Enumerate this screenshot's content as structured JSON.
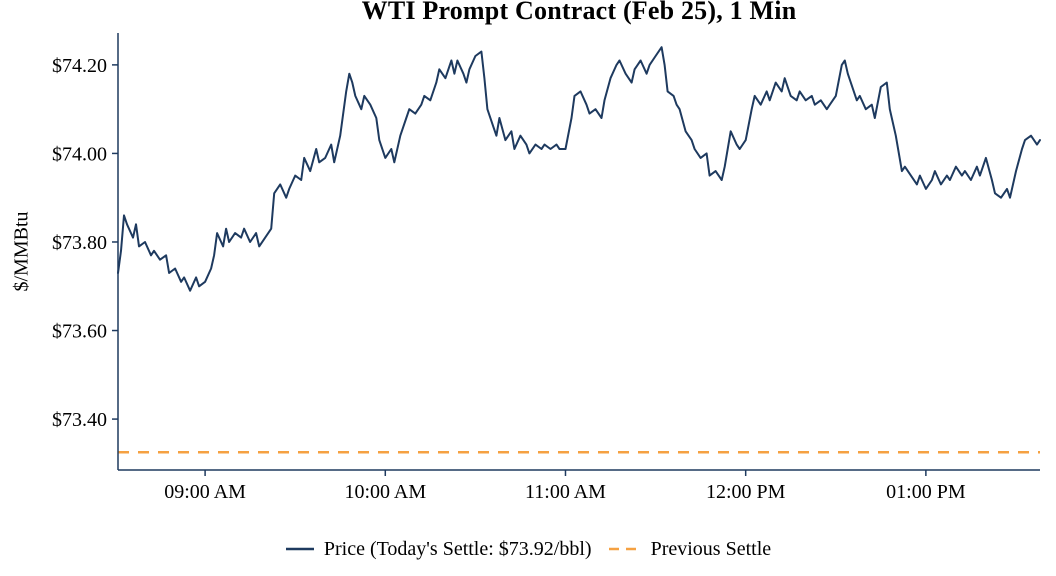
{
  "chart_data": {
    "type": "line",
    "title": "WTI Prompt Contract (Feb 25), 1 Min",
    "xlabel": "",
    "ylabel": "$/MMBtu",
    "grid": false,
    "background": "#ffffff",
    "legend_position": "bottom",
    "x_unit": "minutes_after_midnight",
    "x_range": [
      511,
      818
    ],
    "y_range": [
      73.285,
      74.272
    ],
    "x_ticks": [
      {
        "value": 540,
        "label": "09:00 AM"
      },
      {
        "value": 600,
        "label": "10:00 AM"
      },
      {
        "value": 660,
        "label": "11:00 AM"
      },
      {
        "value": 720,
        "label": "12:00 PM"
      },
      {
        "value": 780,
        "label": "01:00 PM"
      }
    ],
    "y_ticks": [
      {
        "value": 74.2,
        "label": "$74.20"
      },
      {
        "value": 74.0,
        "label": "$74.00"
      },
      {
        "value": 73.8,
        "label": "$73.80"
      },
      {
        "value": 73.6,
        "label": "$73.60"
      },
      {
        "value": 73.4,
        "label": "$73.40"
      }
    ],
    "previous_settle": 73.325,
    "todays_settle_text": "$73.92/bbl",
    "series": [
      {
        "name": "Price (Today's Settle: $73.92/bbl)",
        "style": "solid",
        "points": [
          [
            511,
            73.73
          ],
          [
            512,
            73.78
          ],
          [
            513,
            73.86
          ],
          [
            514,
            73.84
          ],
          [
            516,
            73.81
          ],
          [
            517,
            73.84
          ],
          [
            518,
            73.79
          ],
          [
            520,
            73.8
          ],
          [
            522,
            73.77
          ],
          [
            523,
            73.78
          ],
          [
            525,
            73.76
          ],
          [
            527,
            73.77
          ],
          [
            528,
            73.73
          ],
          [
            530,
            73.74
          ],
          [
            532,
            73.71
          ],
          [
            533,
            73.72
          ],
          [
            535,
            73.69
          ],
          [
            537,
            73.72
          ],
          [
            538,
            73.7
          ],
          [
            540,
            73.71
          ],
          [
            542,
            73.74
          ],
          [
            543,
            73.77
          ],
          [
            544,
            73.82
          ],
          [
            546,
            73.79
          ],
          [
            547,
            73.83
          ],
          [
            548,
            73.8
          ],
          [
            550,
            73.82
          ],
          [
            552,
            73.81
          ],
          [
            553,
            73.83
          ],
          [
            555,
            73.8
          ],
          [
            557,
            73.82
          ],
          [
            558,
            73.79
          ],
          [
            560,
            73.81
          ],
          [
            562,
            73.83
          ],
          [
            563,
            73.91
          ],
          [
            565,
            73.93
          ],
          [
            567,
            73.9
          ],
          [
            568,
            73.92
          ],
          [
            570,
            73.95
          ],
          [
            572,
            73.94
          ],
          [
            573,
            73.99
          ],
          [
            575,
            73.96
          ],
          [
            577,
            74.01
          ],
          [
            578,
            73.98
          ],
          [
            580,
            73.99
          ],
          [
            582,
            74.02
          ],
          [
            583,
            73.98
          ],
          [
            585,
            74.04
          ],
          [
            587,
            74.14
          ],
          [
            588,
            74.18
          ],
          [
            589,
            74.16
          ],
          [
            590,
            74.13
          ],
          [
            592,
            74.1
          ],
          [
            593,
            74.13
          ],
          [
            595,
            74.11
          ],
          [
            597,
            74.08
          ],
          [
            598,
            74.03
          ],
          [
            600,
            73.99
          ],
          [
            602,
            74.01
          ],
          [
            603,
            73.98
          ],
          [
            605,
            74.04
          ],
          [
            607,
            74.08
          ],
          [
            608,
            74.1
          ],
          [
            610,
            74.09
          ],
          [
            612,
            74.11
          ],
          [
            613,
            74.13
          ],
          [
            615,
            74.12
          ],
          [
            617,
            74.16
          ],
          [
            618,
            74.19
          ],
          [
            620,
            74.17
          ],
          [
            622,
            74.21
          ],
          [
            623,
            74.18
          ],
          [
            624,
            74.21
          ],
          [
            626,
            74.18
          ],
          [
            627,
            74.16
          ],
          [
            628,
            74.19
          ],
          [
            630,
            74.22
          ],
          [
            632,
            74.23
          ],
          [
            633,
            74.17
          ],
          [
            634,
            74.1
          ],
          [
            636,
            74.06
          ],
          [
            637,
            74.04
          ],
          [
            638,
            74.08
          ],
          [
            640,
            74.03
          ],
          [
            642,
            74.05
          ],
          [
            643,
            74.01
          ],
          [
            645,
            74.04
          ],
          [
            647,
            74.02
          ],
          [
            648,
            74.0
          ],
          [
            650,
            74.02
          ],
          [
            652,
            74.01
          ],
          [
            653,
            74.02
          ],
          [
            655,
            74.01
          ],
          [
            657,
            74.02
          ],
          [
            658,
            74.01
          ],
          [
            660,
            74.01
          ],
          [
            662,
            74.08
          ],
          [
            663,
            74.13
          ],
          [
            665,
            74.14
          ],
          [
            667,
            74.11
          ],
          [
            668,
            74.09
          ],
          [
            670,
            74.1
          ],
          [
            672,
            74.08
          ],
          [
            673,
            74.12
          ],
          [
            675,
            74.17
          ],
          [
            677,
            74.2
          ],
          [
            678,
            74.21
          ],
          [
            680,
            74.18
          ],
          [
            682,
            74.16
          ],
          [
            683,
            74.19
          ],
          [
            685,
            74.21
          ],
          [
            687,
            74.18
          ],
          [
            688,
            74.2
          ],
          [
            690,
            74.22
          ],
          [
            692,
            74.24
          ],
          [
            693,
            74.2
          ],
          [
            694,
            74.14
          ],
          [
            696,
            74.13
          ],
          [
            697,
            74.11
          ],
          [
            698,
            74.1
          ],
          [
            700,
            74.05
          ],
          [
            702,
            74.03
          ],
          [
            703,
            74.01
          ],
          [
            705,
            73.99
          ],
          [
            707,
            74.0
          ],
          [
            708,
            73.95
          ],
          [
            710,
            73.96
          ],
          [
            712,
            73.94
          ],
          [
            713,
            73.97
          ],
          [
            715,
            74.05
          ],
          [
            717,
            74.02
          ],
          [
            718,
            74.01
          ],
          [
            720,
            74.03
          ],
          [
            722,
            74.1
          ],
          [
            723,
            74.13
          ],
          [
            725,
            74.11
          ],
          [
            727,
            74.14
          ],
          [
            728,
            74.12
          ],
          [
            730,
            74.16
          ],
          [
            732,
            74.14
          ],
          [
            733,
            74.17
          ],
          [
            735,
            74.13
          ],
          [
            737,
            74.12
          ],
          [
            738,
            74.14
          ],
          [
            740,
            74.12
          ],
          [
            742,
            74.13
          ],
          [
            743,
            74.11
          ],
          [
            745,
            74.12
          ],
          [
            747,
            74.1
          ],
          [
            748,
            74.11
          ],
          [
            750,
            74.13
          ],
          [
            752,
            74.2
          ],
          [
            753,
            74.21
          ],
          [
            754,
            74.18
          ],
          [
            756,
            74.14
          ],
          [
            757,
            74.12
          ],
          [
            758,
            74.13
          ],
          [
            760,
            74.1
          ],
          [
            762,
            74.11
          ],
          [
            763,
            74.08
          ],
          [
            765,
            74.15
          ],
          [
            767,
            74.16
          ],
          [
            768,
            74.1
          ],
          [
            770,
            74.04
          ],
          [
            772,
            73.96
          ],
          [
            773,
            73.97
          ],
          [
            775,
            73.95
          ],
          [
            777,
            73.93
          ],
          [
            778,
            73.95
          ],
          [
            780,
            73.92
          ],
          [
            782,
            73.94
          ],
          [
            783,
            73.96
          ],
          [
            785,
            73.93
          ],
          [
            787,
            73.95
          ],
          [
            788,
            73.94
          ],
          [
            790,
            73.97
          ],
          [
            792,
            73.95
          ],
          [
            793,
            73.96
          ],
          [
            795,
            73.94
          ],
          [
            797,
            73.97
          ],
          [
            798,
            73.95
          ],
          [
            800,
            73.99
          ],
          [
            802,
            73.94
          ],
          [
            803,
            73.91
          ],
          [
            805,
            73.9
          ],
          [
            807,
            73.92
          ],
          [
            808,
            73.9
          ],
          [
            810,
            73.96
          ],
          [
            812,
            74.01
          ],
          [
            813,
            74.03
          ],
          [
            815,
            74.04
          ],
          [
            817,
            74.02
          ],
          [
            818,
            74.03
          ]
        ]
      },
      {
        "name": "Previous Settle",
        "style": "dashed",
        "value": 73.325
      }
    ]
  },
  "legend": {
    "price_label": "Price (Today's Settle: $73.92/bbl)",
    "previous_label": "Previous Settle"
  },
  "colors": {
    "line": "#1e3a5f",
    "previous_settle": "#f5a142",
    "axis": "#1e3a5f",
    "text": "#000000"
  }
}
